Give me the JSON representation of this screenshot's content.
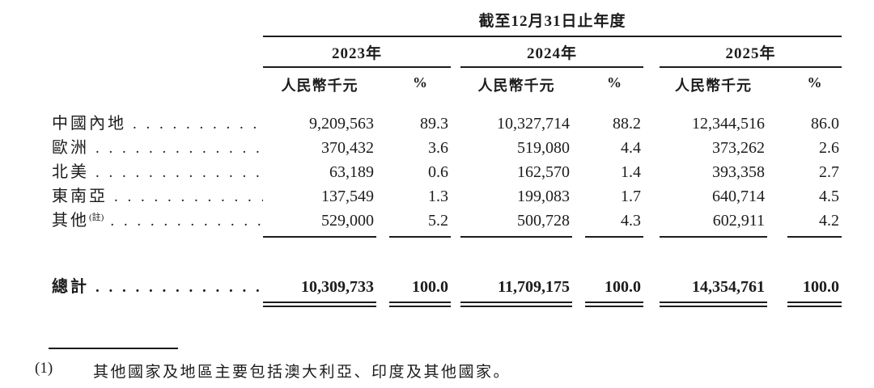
{
  "table": {
    "period_header": "截至12月31日止年度",
    "year_groups": [
      {
        "year": "2023年",
        "amount_header": "人民幣千元",
        "pct_header": "%"
      },
      {
        "year": "2024年",
        "amount_header": "人民幣千元",
        "pct_header": "%"
      },
      {
        "year": "2025年",
        "amount_header": "人民幣千元",
        "pct_header": "%"
      }
    ],
    "rows": [
      {
        "label": "中國內地",
        "note": "",
        "values": [
          "9,209,563",
          "89.3",
          "10,327,714",
          "88.2",
          "12,344,516",
          "86.0"
        ]
      },
      {
        "label": "歐洲",
        "note": "",
        "values": [
          "370,432",
          "3.6",
          "519,080",
          "4.4",
          "373,262",
          "2.6"
        ]
      },
      {
        "label": "北美",
        "note": "",
        "values": [
          "63,189",
          "0.6",
          "162,570",
          "1.4",
          "393,358",
          "2.7"
        ]
      },
      {
        "label": "東南亞",
        "note": "",
        "values": [
          "137,549",
          "1.3",
          "199,083",
          "1.7",
          "640,714",
          "4.5"
        ]
      },
      {
        "label": "其他",
        "note": "(註)",
        "values": [
          "529,000",
          "5.2",
          "500,728",
          "4.3",
          "602,911",
          "4.2"
        ]
      }
    ],
    "total": {
      "label": "總計",
      "values": [
        "10,309,733",
        "100.0",
        "11,709,175",
        "100.0",
        "14,354,761",
        "100.0"
      ]
    }
  },
  "footnote": {
    "marker": "(1)",
    "text": "其他國家及地區主要包括澳大利亞、印度及其他國家。"
  }
}
